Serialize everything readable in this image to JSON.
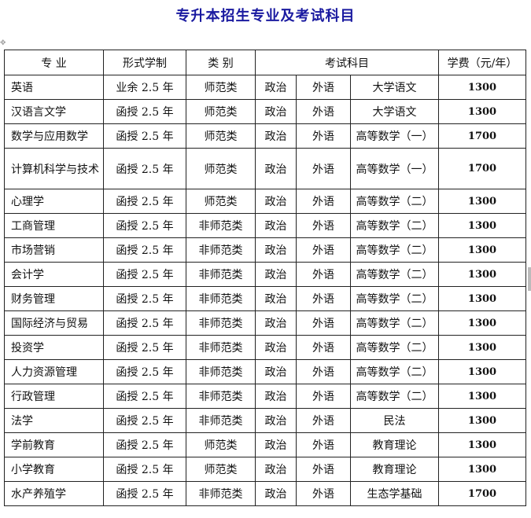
{
  "title": "专升本招生专业及考试科目",
  "headers": [
    "专 业",
    "形式学制",
    "类 别",
    "考试科目",
    "学费（元/年）"
  ],
  "rows": [
    {
      "major": "英语",
      "form": "业余 2.5 年",
      "category": "师范类",
      "exam1": "政治",
      "exam2": "外语",
      "exam3": "大学语文",
      "fee": "1300"
    },
    {
      "major": "汉语言文学",
      "form": "函授 2.5 年",
      "category": "师范类",
      "exam1": "政治",
      "exam2": "外语",
      "exam3": "大学语文",
      "fee": "1300"
    },
    {
      "major": "数学与应用数学",
      "form": "函授 2.5 年",
      "category": "师范类",
      "exam1": "政治",
      "exam2": "外语",
      "exam3": "高等数学（一）",
      "fee": "1700"
    },
    {
      "major": "计算机科学与技术",
      "form": "函授 2.5 年",
      "category": "师范类",
      "exam1": "政治",
      "exam2": "外语",
      "exam3": "高等数学（一）",
      "fee": "1700"
    },
    {
      "major": "心理学",
      "form": "函授 2.5 年",
      "category": "师范类",
      "exam1": "政治",
      "exam2": "外语",
      "exam3": "高等数学（二）",
      "fee": "1300"
    },
    {
      "major": "工商管理",
      "form": "函授 2.5 年",
      "category": "非师范类",
      "exam1": "政治",
      "exam2": "外语",
      "exam3": "高等数学（二）",
      "fee": "1300"
    },
    {
      "major": "市场营销",
      "form": "函授 2.5 年",
      "category": "非师范类",
      "exam1": "政治",
      "exam2": "外语",
      "exam3": "高等数学（二）",
      "fee": "1300"
    },
    {
      "major": "会计学",
      "form": "函授 2.5 年",
      "category": "非师范类",
      "exam1": "政治",
      "exam2": "外语",
      "exam3": "高等数学（二）",
      "fee": "1300"
    },
    {
      "major": "财务管理",
      "form": "函授 2.5 年",
      "category": "非师范类",
      "exam1": "政治",
      "exam2": "外语",
      "exam3": "高等数学（二）",
      "fee": "1300"
    },
    {
      "major": "国际经济与贸易",
      "form": "函授 2.5 年",
      "category": "非师范类",
      "exam1": "政治",
      "exam2": "外语",
      "exam3": "高等数学（二）",
      "fee": "1300"
    },
    {
      "major": "投资学",
      "form": "函授 2.5 年",
      "category": "非师范类",
      "exam1": "政治",
      "exam2": "外语",
      "exam3": "高等数学（二）",
      "fee": "1300"
    },
    {
      "major": "人力资源管理",
      "form": "函授 2.5 年",
      "category": "非师范类",
      "exam1": "政治",
      "exam2": "外语",
      "exam3": "高等数学（二）",
      "fee": "1300"
    },
    {
      "major": "行政管理",
      "form": "函授 2.5 年",
      "category": "非师范类",
      "exam1": "政治",
      "exam2": "外语",
      "exam3": "高等数学（二）",
      "fee": "1300"
    },
    {
      "major": "法学",
      "form": "函授 2.5 年",
      "category": "非师范类",
      "exam1": "政治",
      "exam2": "外语",
      "exam3": "民法",
      "fee": "1300"
    },
    {
      "major": "学前教育",
      "form": "函授 2.5 年",
      "category": "师范类",
      "exam1": "政治",
      "exam2": "外语",
      "exam3": "教育理论",
      "fee": "1300"
    },
    {
      "major": "小学教育",
      "form": "函授 2.5 年",
      "category": "师范类",
      "exam1": "政治",
      "exam2": "外语",
      "exam3": "教育理论",
      "fee": "1300"
    },
    {
      "major": "水产养殖学",
      "form": "函授 2.5 年",
      "category": "非师范类",
      "exam1": "政治",
      "exam2": "外语",
      "exam3": "生态学基础",
      "fee": "1700"
    }
  ]
}
